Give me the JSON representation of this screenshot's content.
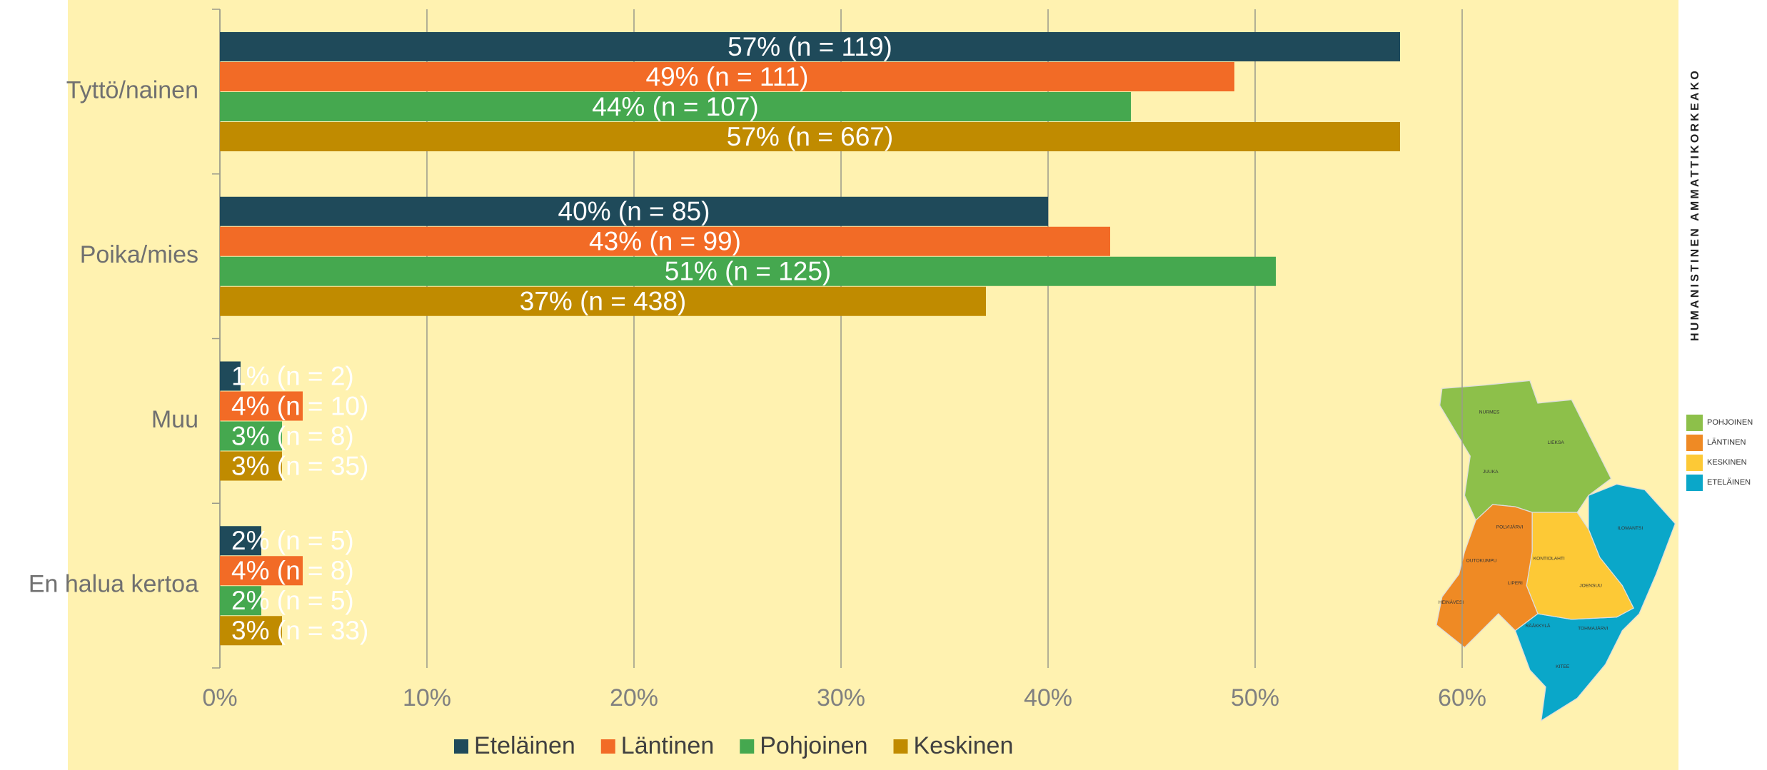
{
  "chart_data": {
    "type": "barh",
    "categories": [
      "Tyttö/nainen",
      "Poika/mies",
      "Muu",
      "En halua kertoa"
    ],
    "series": [
      {
        "name": "Eteläinen",
        "color": "#1f4a5a",
        "values": [
          57,
          40,
          1,
          2
        ],
        "value_labels": [
          "57% (n = 119)",
          "40% (n = 85)",
          "1% (n = 2)",
          "2% (n = 5)"
        ]
      },
      {
        "name": "Läntinen",
        "color": "#f26b26",
        "values": [
          49,
          43,
          4,
          4
        ],
        "value_labels": [
          "49% (n = 111)",
          "43% (n = 99)",
          "4% (n = 10)",
          "4% (n = 8)"
        ]
      },
      {
        "name": "Pohjoinen",
        "color": "#45a84f",
        "values": [
          44,
          51,
          3,
          2
        ],
        "value_labels": [
          "44% (n = 107)",
          "51% (n = 125)",
          "3% (n = 8)",
          "2% (n = 5)"
        ]
      },
      {
        "name": "Keskinen",
        "color": "#c08b00",
        "values": [
          57,
          37,
          3,
          3
        ],
        "value_labels": [
          "57% (n = 667)",
          "37% (n = 438)",
          "3% (n = 35)",
          "3% (n = 33)"
        ]
      }
    ],
    "xlim": [
      0,
      60
    ],
    "xticks": [
      {
        "value": 0,
        "label": "0%"
      },
      {
        "value": 10,
        "label": "10%"
      },
      {
        "value": 20,
        "label": "20%"
      },
      {
        "value": 30,
        "label": "30%"
      },
      {
        "value": 40,
        "label": "40%"
      },
      {
        "value": 50,
        "label": "50%"
      },
      {
        "value": 60,
        "label": "60%"
      }
    ],
    "grid": true,
    "legend": "bottom"
  },
  "brand": "HUMANISTINEN AMMATTIKORKEAKO",
  "map": {
    "regions": [
      "NURMES",
      "LIEKSA",
      "JUUKA",
      "POLVIJÄRVI",
      "OUTOKUMPU",
      "KONTIOLAHTI",
      "ILOMANTSI",
      "LIPERI",
      "JOENSUU",
      "HEINÄVESI",
      "RÄÄKKYLÄ",
      "TOHMAJÄRVI",
      "KITEE"
    ],
    "legend": [
      "POHJOINEN",
      "LÄNTINEN",
      "KESKINEN",
      "ETELÄINEN"
    ]
  }
}
